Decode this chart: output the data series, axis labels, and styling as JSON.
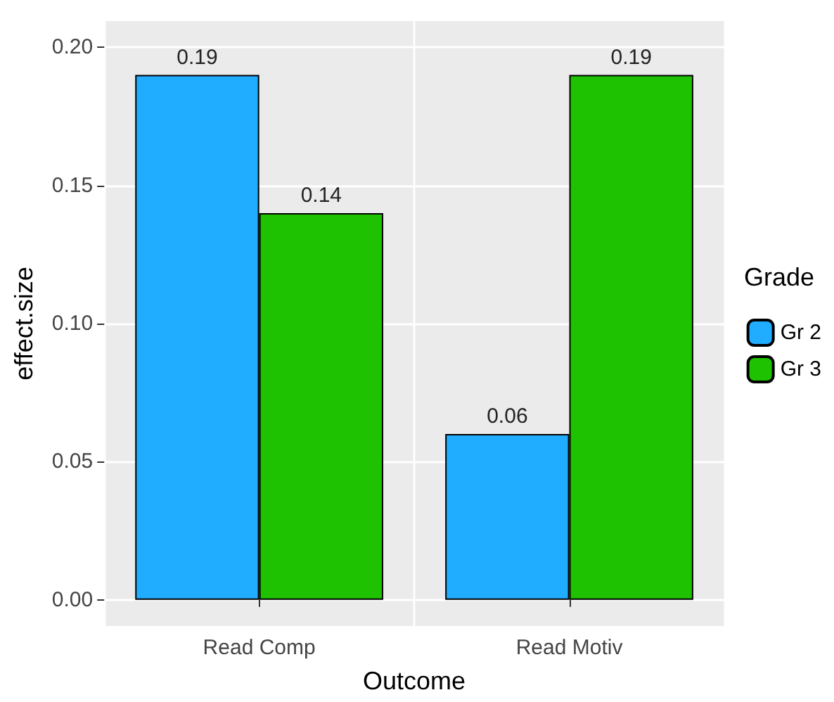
{
  "chart_data": {
    "type": "bar",
    "xlabel": "Outcome",
    "ylabel": "effect.size",
    "legend_title": "Grade",
    "categories": [
      "Read Comp",
      "Read Motiv"
    ],
    "series": [
      {
        "name": "Gr 2",
        "color": "#21adff",
        "values": [
          0.19,
          0.06
        ]
      },
      {
        "name": "Gr 3",
        "color": "#1ec200",
        "values": [
          0.14,
          0.19
        ]
      }
    ],
    "ylim": [
      -0.0095,
      0.2095
    ],
    "yticks": [
      {
        "value": 0,
        "label": "0.00"
      },
      {
        "value": 0.05,
        "label": "0.05"
      },
      {
        "value": 0.1,
        "label": "0.10"
      },
      {
        "value": 0.15,
        "label": "0.15"
      },
      {
        "value": 0.2,
        "label": "0.20"
      }
    ],
    "grid": true,
    "legend": "right",
    "data_labels": true
  }
}
